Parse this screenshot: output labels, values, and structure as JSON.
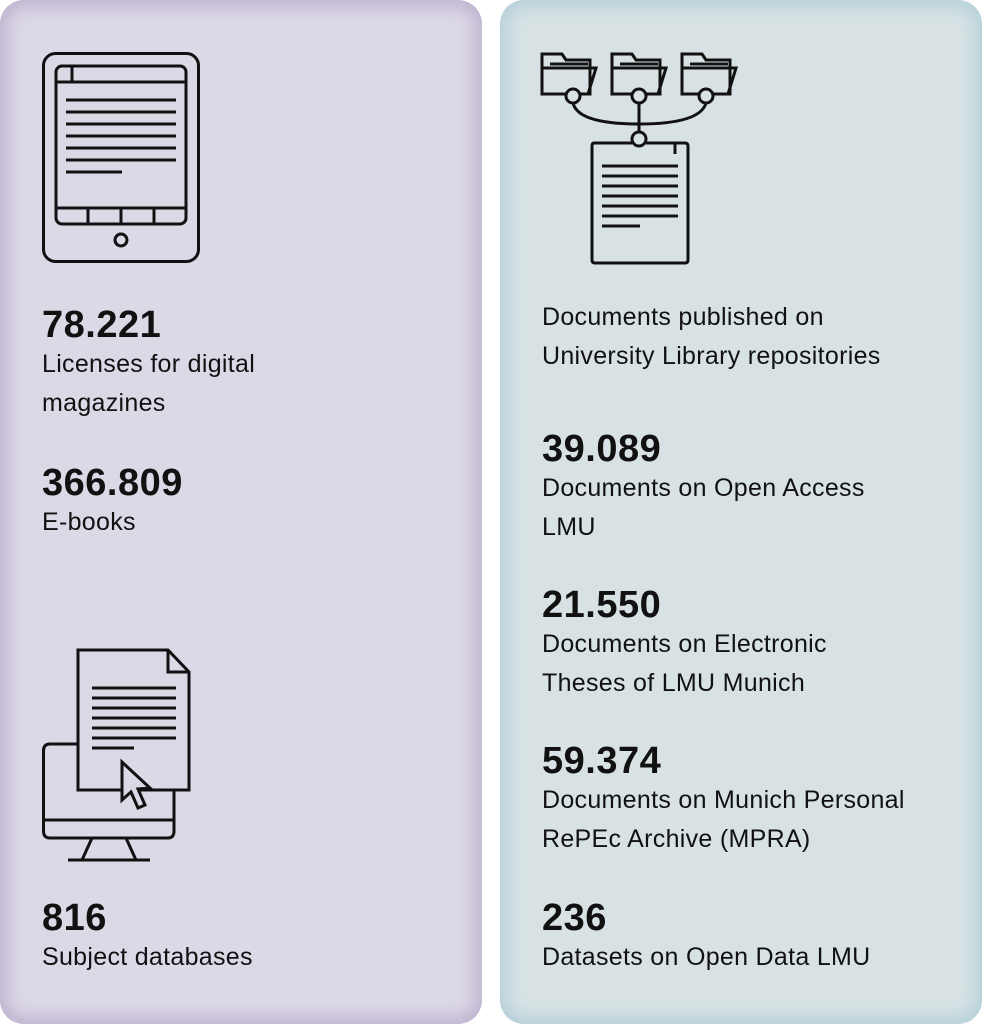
{
  "left_panel": {
    "background": "#dcd8e6",
    "stat1": {
      "value": "78.221",
      "label_line1": "Licenses for digital",
      "label_line2": "magazines"
    },
    "stat2": {
      "value": "366.809",
      "label": "E-books"
    },
    "stat3": {
      "value": "816",
      "label": "Subject databases"
    },
    "icons": [
      "ebook-reader-icon",
      "computer-document-cursor-icon"
    ]
  },
  "right_panel": {
    "background": "#d8e2e4",
    "icon": "folders-to-repository-icon",
    "heading_line1": "Documents published on",
    "heading_line2": "University Library repositories",
    "stats": [
      {
        "value": "39.089",
        "label_line1": "Documents on Open Access",
        "label_line2": "LMU"
      },
      {
        "value": "21.550",
        "label_line1": "Documents on Electronic",
        "label_line2": "Theses of LMU Munich"
      },
      {
        "value": "59.374",
        "label_line1": "Documents on Munich Personal",
        "label_line2": "RePEc Archive (MPRA)"
      },
      {
        "value": "236",
        "label_line1": "Datasets on Open Data LMU",
        "label_line2": ""
      }
    ]
  }
}
